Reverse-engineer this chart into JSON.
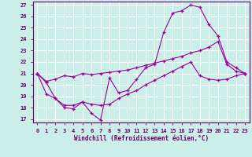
{
  "background_color": "#cceee8",
  "line_color": "#990099",
  "grid_color": "#ffffff",
  "xlabel": "Windchill (Refroidissement éolien,°C)",
  "ylabel_ticks": [
    17,
    18,
    19,
    20,
    21,
    22,
    23,
    24,
    25,
    26,
    27
  ],
  "xlabel_ticks": [
    0,
    1,
    2,
    3,
    4,
    5,
    6,
    7,
    8,
    9,
    10,
    11,
    12,
    13,
    14,
    15,
    16,
    17,
    18,
    19,
    20,
    21,
    22,
    23
  ],
  "xlim": [
    -0.5,
    23.5
  ],
  "ylim": [
    16.7,
    27.3
  ],
  "curve1_x": [
    0,
    1,
    2,
    3,
    4,
    5,
    6,
    7,
    8,
    9,
    10,
    11,
    12,
    13,
    14,
    15,
    16,
    17,
    18,
    19,
    20,
    21,
    22,
    23
  ],
  "curve1_y": [
    21.0,
    20.2,
    18.8,
    18.2,
    18.2,
    18.5,
    17.5,
    16.9,
    20.6,
    19.3,
    19.5,
    20.5,
    21.5,
    21.8,
    24.6,
    26.3,
    26.5,
    27.0,
    26.8,
    25.3,
    24.3,
    22.0,
    21.5,
    21.0
  ],
  "curve2_x": [
    0,
    1,
    2,
    3,
    4,
    5,
    6,
    7,
    8,
    9,
    10,
    11,
    12,
    13,
    14,
    15,
    16,
    17,
    18,
    19,
    20,
    21,
    22,
    23
  ],
  "curve2_y": [
    21.0,
    20.3,
    20.5,
    20.8,
    20.7,
    21.0,
    20.9,
    21.0,
    21.1,
    21.2,
    21.3,
    21.5,
    21.7,
    21.9,
    22.1,
    22.3,
    22.5,
    22.8,
    23.0,
    23.3,
    23.8,
    21.8,
    21.2,
    21.0
  ],
  "curve3_x": [
    0,
    1,
    2,
    3,
    4,
    5,
    6,
    7,
    8,
    9,
    10,
    11,
    12,
    13,
    14,
    15,
    16,
    17,
    18,
    19,
    20,
    21,
    22,
    23
  ],
  "curve3_y": [
    21.0,
    19.2,
    18.8,
    18.0,
    17.9,
    18.5,
    18.3,
    18.2,
    18.3,
    18.8,
    19.2,
    19.5,
    20.0,
    20.4,
    20.8,
    21.2,
    21.6,
    22.0,
    20.8,
    20.5,
    20.4,
    20.5,
    20.8,
    21.0
  ]
}
